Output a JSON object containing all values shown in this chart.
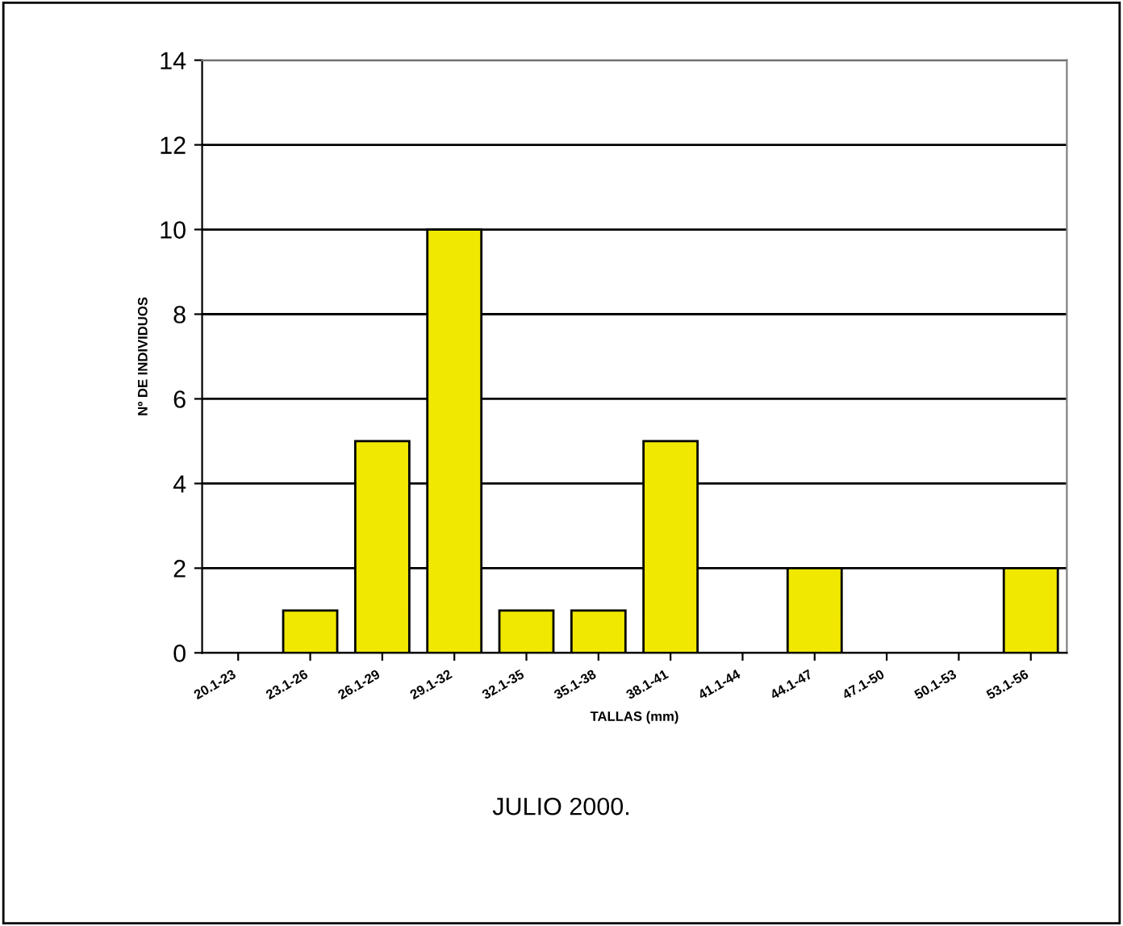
{
  "chart_data": {
    "type": "bar",
    "xlabel": "TALLAS (mm)",
    "ylabel": "Nº DE INDIVIDUOS",
    "annotations": [
      "JULIO 2000."
    ],
    "categories": [
      "20.1-23",
      "23.1-26",
      "26.1-29",
      "29.1-32",
      "32.1-35",
      "35.1-38",
      "38.1-41",
      "41.1-44",
      "44.1-47",
      "47.1-50",
      "50.1-53",
      "53.1-56"
    ],
    "values": [
      0,
      1,
      5,
      10,
      1,
      1,
      5,
      0,
      2,
      0,
      0,
      2
    ],
    "color": "#f0e800",
    "ylim": [
      0,
      14
    ],
    "yticks": [
      0,
      2,
      4,
      6,
      8,
      10,
      12,
      14
    ],
    "grid": "y"
  }
}
